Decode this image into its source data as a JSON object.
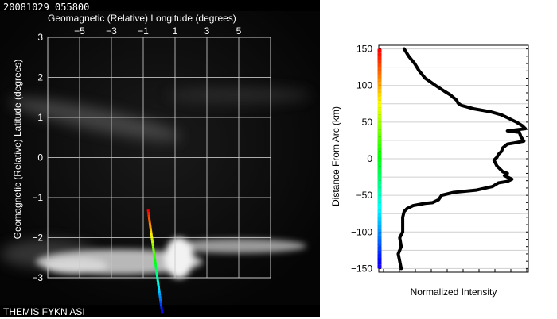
{
  "header": {
    "timestamp": "20081029 055800",
    "footer_label": "THEMIS FYKN ASI"
  },
  "colors": {
    "grid_white": "#c8c8c8",
    "ink": "#000000",
    "bg_black": "#000000",
    "bg_white": "#ffffff"
  },
  "chart_data": [
    {
      "type": "image",
      "title": "",
      "xlabel": "Geomagnetic (Relative) Longitude (degrees)",
      "ylabel": "Geomagnetic (Relative) Latitude (degrees)",
      "xlim": [
        -7,
        7
      ],
      "ylim": [
        -3,
        3
      ],
      "x_ticks": [
        -5,
        -3,
        -1,
        1,
        3,
        5
      ],
      "x_tick_labels": [
        "−5",
        "−3",
        "−1",
        "1",
        "3",
        "5"
      ],
      "y_ticks": [
        3,
        2,
        1,
        0,
        -1,
        -2,
        -3
      ],
      "y_tick_labels": [
        "3",
        "2",
        "1",
        "0",
        "−1",
        "−2",
        "−3"
      ],
      "grid": true,
      "arc_line": {
        "from": {
          "x": -0.7,
          "y": -1.3
        },
        "to": {
          "x": 0.2,
          "y": -3.9
        },
        "colormap": "rainbow"
      }
    },
    {
      "type": "line",
      "title": "",
      "xlabel": "Normalized Intensity",
      "ylabel": "Distance From Arc (km)",
      "ylim": [
        -155,
        155
      ],
      "xlim": [
        0,
        1
      ],
      "y_ticks": [
        150,
        100,
        50,
        0,
        -50,
        -100,
        -150
      ],
      "y_tick_labels": [
        "150",
        "100",
        "50",
        "0",
        "−50",
        "−100",
        "−150"
      ],
      "grid": true,
      "series": [
        {
          "points": [
            {
              "x": 0.17,
              "y": 150
            },
            {
              "x": 0.2,
              "y": 140
            },
            {
              "x": 0.24,
              "y": 130
            },
            {
              "x": 0.27,
              "y": 120
            },
            {
              "x": 0.31,
              "y": 110
            },
            {
              "x": 0.38,
              "y": 100
            },
            {
              "x": 0.44,
              "y": 92
            },
            {
              "x": 0.48,
              "y": 87
            },
            {
              "x": 0.49,
              "y": 85
            },
            {
              "x": 0.52,
              "y": 80
            },
            {
              "x": 0.53,
              "y": 76
            },
            {
              "x": 0.55,
              "y": 73
            },
            {
              "x": 0.64,
              "y": 68
            },
            {
              "x": 0.75,
              "y": 64
            },
            {
              "x": 0.82,
              "y": 60
            },
            {
              "x": 0.87,
              "y": 55
            },
            {
              "x": 0.92,
              "y": 50
            },
            {
              "x": 0.96,
              "y": 45
            },
            {
              "x": 0.98,
              "y": 41
            },
            {
              "x": 0.86,
              "y": 38
            },
            {
              "x": 0.94,
              "y": 36
            },
            {
              "x": 0.95,
              "y": 30
            },
            {
              "x": 0.97,
              "y": 24
            },
            {
              "x": 0.92,
              "y": 22
            },
            {
              "x": 0.86,
              "y": 20
            },
            {
              "x": 0.83,
              "y": 15
            },
            {
              "x": 0.82,
              "y": 10
            },
            {
              "x": 0.8,
              "y": 6
            },
            {
              "x": 0.79,
              "y": 2
            },
            {
              "x": 0.77,
              "y": -2
            },
            {
              "x": 0.79,
              "y": -10
            },
            {
              "x": 0.83,
              "y": -18
            },
            {
              "x": 0.86,
              "y": -20
            },
            {
              "x": 0.84,
              "y": -23
            },
            {
              "x": 0.89,
              "y": -28
            },
            {
              "x": 0.86,
              "y": -31
            },
            {
              "x": 0.8,
              "y": -33
            },
            {
              "x": 0.76,
              "y": -38
            },
            {
              "x": 0.65,
              "y": -43
            },
            {
              "x": 0.5,
              "y": -46
            },
            {
              "x": 0.42,
              "y": -50
            },
            {
              "x": 0.4,
              "y": -56
            },
            {
              "x": 0.36,
              "y": -60
            },
            {
              "x": 0.31,
              "y": -61
            },
            {
              "x": 0.23,
              "y": -64
            },
            {
              "x": 0.19,
              "y": -68
            },
            {
              "x": 0.17,
              "y": -72
            },
            {
              "x": 0.16,
              "y": -80
            },
            {
              "x": 0.16,
              "y": -100
            },
            {
              "x": 0.14,
              "y": -108
            },
            {
              "x": 0.15,
              "y": -120
            },
            {
              "x": 0.13,
              "y": -130
            },
            {
              "x": 0.14,
              "y": -140
            },
            {
              "x": 0.15,
              "y": -150
            }
          ]
        }
      ]
    }
  ]
}
